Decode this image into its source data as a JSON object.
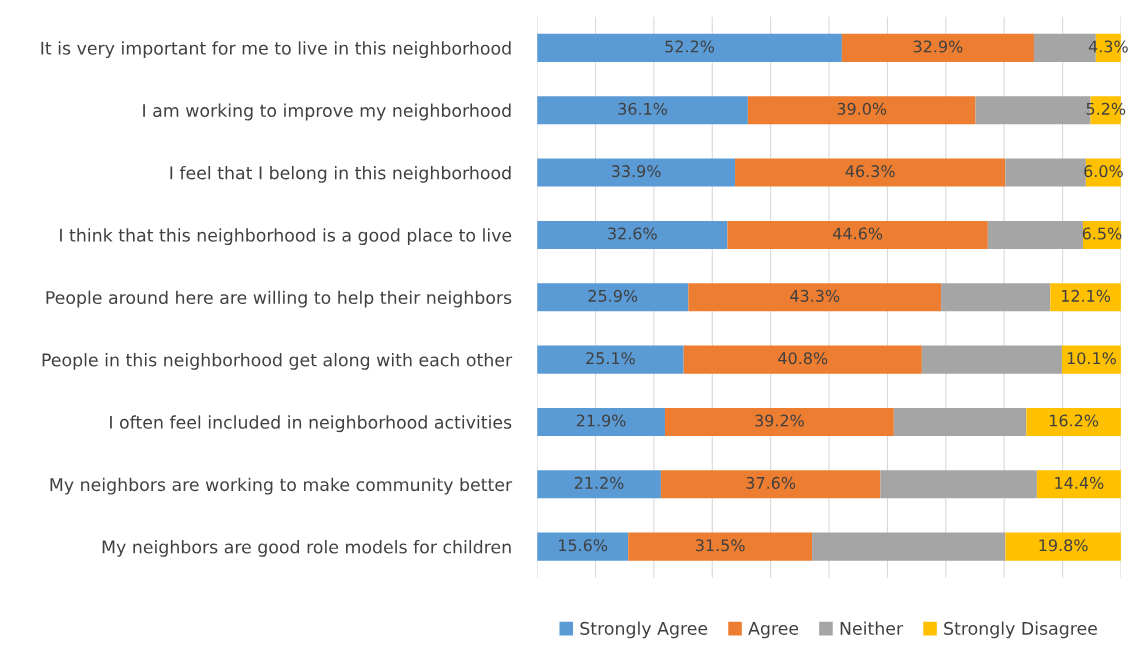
{
  "chart_data": {
    "type": "bar",
    "orientation": "horizontal",
    "stacked": true,
    "categories": [
      "It is very important for me to live in this neighborhood",
      "I am working to improve my neighborhood",
      "I feel that I belong in this neighborhood",
      "I think that this neighborhood is a good place to live",
      "People around here are willing to help their neighbors",
      "People in this neighborhood get along with each other",
      "I often feel included in neighborhood activities",
      "My neighbors are working to make community better",
      "My neighbors are good role models for children"
    ],
    "series": [
      {
        "name": "Strongly Agree",
        "color": "#5b9bd5",
        "values": [
          52.2,
          36.1,
          33.9,
          32.6,
          25.9,
          25.1,
          21.9,
          21.2,
          15.6
        ],
        "value_labels": [
          "52.2%",
          "36.1%",
          "33.9%",
          "32.6%",
          "25.9%",
          "25.1%",
          "21.9%",
          "21.2%",
          "15.6%"
        ]
      },
      {
        "name": "Agree",
        "color": "#ed7d31",
        "values": [
          32.9,
          39.0,
          46.3,
          44.6,
          43.3,
          40.8,
          39.2,
          37.6,
          31.5
        ],
        "value_labels": [
          "32.9%",
          "39.0%",
          "46.3%",
          "44.6%",
          "43.3%",
          "40.8%",
          "39.2%",
          "37.6%",
          "31.5%"
        ]
      },
      {
        "name": "Neither",
        "color": "#a5a5a5",
        "values": [
          10.6,
          19.7,
          13.8,
          16.3,
          18.7,
          24.0,
          22.7,
          26.8,
          33.1
        ],
        "value_labels": [
          null,
          null,
          null,
          null,
          null,
          null,
          null,
          null,
          null
        ]
      },
      {
        "name": "Strongly Disagree",
        "color": "#ffc000",
        "values": [
          4.3,
          5.2,
          6.0,
          6.5,
          12.1,
          10.1,
          16.2,
          14.4,
          19.8
        ],
        "value_labels": [
          "4.3%",
          "5.2%",
          "6.0%",
          "6.5%",
          "12.1%",
          "10.1%",
          "16.2%",
          "14.4%",
          "19.8%"
        ]
      }
    ],
    "xlim": [
      0,
      100
    ],
    "xticks": [
      {
        "value": 0,
        "label": null
      },
      {
        "value": 10,
        "label": null
      },
      {
        "value": 20,
        "label": null
      },
      {
        "value": 30,
        "label": null
      },
      {
        "value": 40,
        "label": null
      },
      {
        "value": 50,
        "label": null
      },
      {
        "value": 60,
        "label": null
      },
      {
        "value": 70,
        "label": null
      },
      {
        "value": 80,
        "label": null
      },
      {
        "value": 90,
        "label": null
      },
      {
        "value": 100,
        "label": null
      }
    ],
    "tick_labels": "y",
    "grid": "x",
    "legend": "bottom"
  }
}
